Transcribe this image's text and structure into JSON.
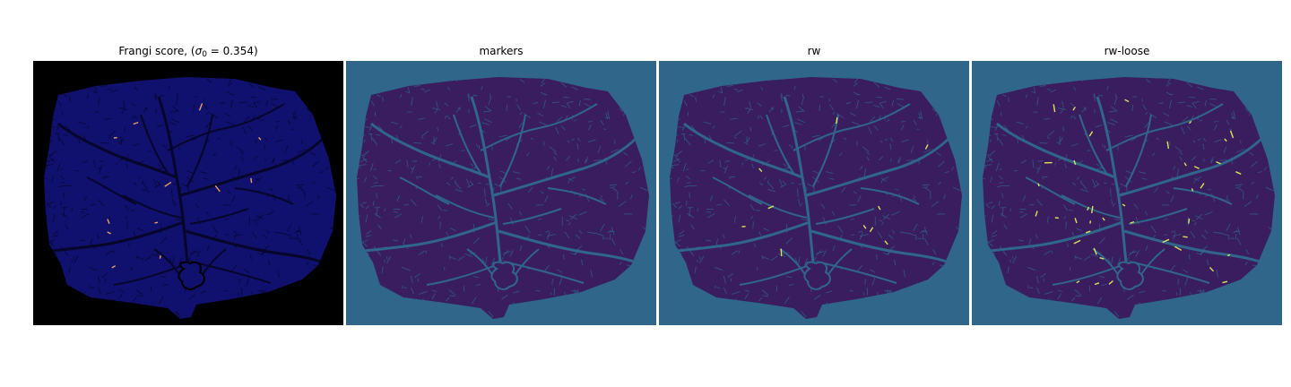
{
  "figure": {
    "panels": [
      {
        "title": "Frangi score, (",
        "title_math": {
          "symbol": "σ",
          "subscript": "0",
          "equals": " = 0.354",
          "close": ")"
        },
        "background": "#000000",
        "blob_fill": "#10106e",
        "vein_color": "#06062a",
        "highlight_color": "#e8a060",
        "highlight_count": 12
      },
      {
        "title": "markers",
        "background": "#2f6689",
        "blob_fill": "#3a1d5e",
        "vein_color": "#2f6689",
        "highlight_color": "#2f6689",
        "highlight_count": 0
      },
      {
        "title": "rw",
        "background": "#2f6689",
        "blob_fill": "#3a1d5e",
        "vein_color": "#2f6689",
        "highlight_color": "#d8e55a",
        "highlight_count": 10
      },
      {
        "title": "rw-loose",
        "background": "#2f6689",
        "blob_fill": "#3a1d5e",
        "vein_color": "#2f6689",
        "highlight_color": "#d8e55a",
        "highlight_count": 40
      }
    ]
  }
}
